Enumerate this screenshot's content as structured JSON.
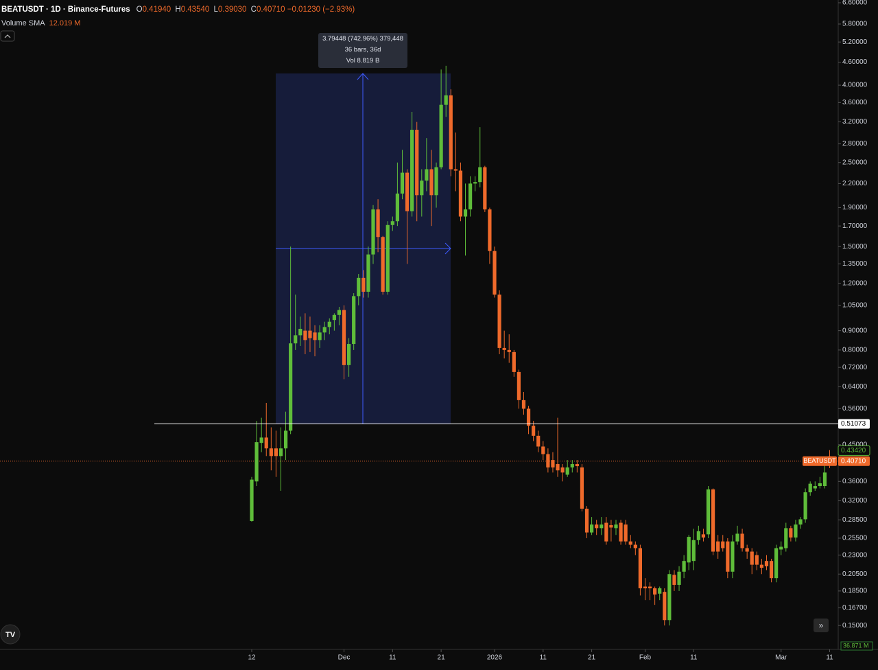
{
  "chart_data": {
    "type": "candlestick",
    "header": {
      "symbol": "BEATUSDT · 1D · Binance-Futures",
      "o_label": "O",
      "open": "0.41940",
      "h_label": "H",
      "high": "0.43540",
      "l_label": "L",
      "low": "0.39030",
      "c_label": "C",
      "close": "0.40710",
      "change": "−0.01230 (−2.93%)",
      "indicator": "Volume SMA",
      "indicator_value": "12.019 M"
    },
    "measure": [
      "3.79448 (742.96%) 379,448",
      "36 bars, 36d",
      "Vol 8.819 B"
    ],
    "log_scale": true,
    "up_color": "#5fbd3a",
    "down_color": "#ef6a2b",
    "ylim": [
      0.1297,
      6.712
    ],
    "yticks": [
      {
        "value": 6.6,
        "label": "6.60000"
      },
      {
        "value": 5.8,
        "label": "5.80000"
      },
      {
        "value": 5.2,
        "label": "5.20000"
      },
      {
        "value": 4.6,
        "label": "4.60000"
      },
      {
        "value": 4.0,
        "label": "4.00000"
      },
      {
        "value": 3.6,
        "label": "3.60000"
      },
      {
        "value": 3.2,
        "label": "3.20000"
      },
      {
        "value": 2.8,
        "label": "2.80000"
      },
      {
        "value": 2.5,
        "label": "2.50000"
      },
      {
        "value": 2.2,
        "label": "2.20000"
      },
      {
        "value": 1.9,
        "label": "1.90000"
      },
      {
        "value": 1.7,
        "label": "1.70000"
      },
      {
        "value": 1.5,
        "label": "1.50000"
      },
      {
        "value": 1.35,
        "label": "1.35000"
      },
      {
        "value": 1.2,
        "label": "1.20000"
      },
      {
        "value": 1.05,
        "label": "1.05000"
      },
      {
        "value": 0.9,
        "label": "0.90000"
      },
      {
        "value": 0.8,
        "label": "0.80000"
      },
      {
        "value": 0.72,
        "label": "0.72000"
      },
      {
        "value": 0.64,
        "label": "0.64000"
      },
      {
        "value": 0.56,
        "label": "0.56000"
      },
      {
        "value": 0.45,
        "label": "0.45000"
      },
      {
        "value": 0.36,
        "label": "0.36000"
      },
      {
        "value": 0.32,
        "label": "0.32000"
      },
      {
        "value": 0.285,
        "label": "0.28500"
      },
      {
        "value": 0.255,
        "label": "0.25500"
      },
      {
        "value": 0.23,
        "label": "0.23000"
      },
      {
        "value": 0.205,
        "label": "0.20500"
      },
      {
        "value": 0.185,
        "label": "0.18500"
      },
      {
        "value": 0.167,
        "label": "0.16700"
      },
      {
        "value": 0.15,
        "label": "0.15000"
      }
    ],
    "xticks": [
      {
        "value": 0,
        "label": "12"
      },
      {
        "value": 19,
        "label": "Dec"
      },
      {
        "value": 29,
        "label": "11"
      },
      {
        "value": 39,
        "label": "21"
      },
      {
        "value": 50,
        "label": "2026"
      },
      {
        "value": 60,
        "label": "11"
      },
      {
        "value": 70,
        "label": "21"
      },
      {
        "value": 81,
        "label": "Feb"
      },
      {
        "value": 91,
        "label": "11"
      },
      {
        "value": 109,
        "label": "Mar"
      },
      {
        "value": 119,
        "label": "11"
      }
    ],
    "hline": {
      "value": 0.51073,
      "label": "0.51073"
    },
    "price_tags": [
      {
        "value": 0.4342,
        "label": "0.43420"
      },
      {
        "value": 0.4071,
        "label": "0.40710",
        "name": "BEATUSDT"
      }
    ],
    "volume_tag": "36.871 M",
    "open": [
      0.283,
      0.36,
      0.455,
      0.47,
      0.44,
      0.44,
      0.42,
      0.44,
      0.49,
      0.833,
      0.875,
      0.9,
      0.9,
      0.89,
      0.85,
      0.89,
      0.92,
      0.96,
      0.99,
      1.02,
      0.73,
      0.83,
      1.11,
      1.24,
      1.14,
      1.43,
      1.88,
      1.59,
      1.14,
      1.71,
      1.75,
      2.07,
      2.35,
      1.86,
      3.05,
      2.05,
      2.24,
      2.4,
      2.05,
      2.43,
      3.55,
      3.76,
      2.4,
      2.38,
      1.8,
      1.88,
      2.2,
      2.22,
      2.43,
      1.88,
      1.46,
      1.12,
      0.81,
      0.8,
      0.79,
      0.7,
      0.59,
      0.56,
      0.505,
      0.475,
      0.445,
      0.425,
      0.41,
      0.4,
      0.392,
      0.375,
      0.392,
      0.4,
      0.392,
      0.305,
      0.264,
      0.277,
      0.271,
      0.28,
      0.276,
      0.271,
      0.28,
      0.277,
      0.25,
      0.245,
      0.24,
      0.19,
      0.19,
      0.188,
      0.182,
      0.184,
      0.155,
      0.204,
      0.192,
      0.208,
      0.22,
      0.222,
      0.252,
      0.261,
      0.261,
      0.343,
      0.25,
      0.25,
      0.25,
      0.208,
      0.25,
      0.262,
      0.24,
      0.235,
      0.23,
      0.217,
      0.222,
      0.222,
      0.2,
      0.238,
      0.24,
      0.271,
      0.256,
      0.277,
      0.286,
      0.337,
      0.345,
      0.35,
      0.35,
      0.4194
    ],
    "high": [
      0.37,
      0.52,
      0.53,
      0.58,
      0.5,
      0.49,
      0.5,
      0.55,
      1.5,
      1.12,
      0.98,
      1.0,
      0.98,
      0.93,
      0.93,
      0.95,
      0.97,
      1.0,
      1.04,
      1.05,
      0.86,
      1.13,
      1.27,
      1.3,
      1.5,
      1.93,
      2.0,
      1.6,
      1.75,
      1.8,
      2.5,
      2.7,
      2.4,
      3.4,
      3.2,
      2.4,
      2.9,
      2.7,
      2.5,
      4.4,
      4.5,
      3.9,
      3.0,
      2.5,
      2.2,
      2.3,
      2.3,
      3.1,
      2.45,
      1.9,
      1.5,
      1.15,
      0.9,
      0.88,
      0.8,
      0.71,
      0.62,
      0.57,
      0.52,
      0.49,
      0.46,
      0.44,
      0.43,
      0.53,
      0.4,
      0.41,
      0.41,
      0.41,
      0.4,
      0.31,
      0.29,
      0.285,
      0.29,
      0.29,
      0.285,
      0.285,
      0.285,
      0.285,
      0.26,
      0.25,
      0.245,
      0.2,
      0.195,
      0.19,
      0.19,
      0.188,
      0.21,
      0.21,
      0.215,
      0.23,
      0.26,
      0.27,
      0.275,
      0.27,
      0.35,
      0.345,
      0.26,
      0.26,
      0.255,
      0.26,
      0.275,
      0.27,
      0.245,
      0.24,
      0.235,
      0.225,
      0.23,
      0.225,
      0.245,
      0.25,
      0.28,
      0.275,
      0.285,
      0.29,
      0.345,
      0.36,
      0.36,
      0.37,
      0.405,
      0.4354
    ],
    "low": [
      0.282,
      0.35,
      0.43,
      0.42,
      0.385,
      0.37,
      0.34,
      0.41,
      0.48,
      0.8,
      0.82,
      0.78,
      0.79,
      0.77,
      0.81,
      0.85,
      0.88,
      0.9,
      0.93,
      0.67,
      0.68,
      0.8,
      1.05,
      1.1,
      1.1,
      1.35,
      1.45,
      1.12,
      1.12,
      1.65,
      1.7,
      2.0,
      1.35,
      1.8,
      1.75,
      1.8,
      2.1,
      1.7,
      1.9,
      2.4,
      3.3,
      2.3,
      2.1,
      1.75,
      1.42,
      1.8,
      2.1,
      2.15,
      1.85,
      1.35,
      1.1,
      0.78,
      0.76,
      0.74,
      0.68,
      0.56,
      0.54,
      0.48,
      0.46,
      0.43,
      0.41,
      0.38,
      0.38,
      0.37,
      0.36,
      0.37,
      0.38,
      0.38,
      0.3,
      0.255,
      0.26,
      0.26,
      0.26,
      0.245,
      0.25,
      0.26,
      0.245,
      0.245,
      0.24,
      0.23,
      0.18,
      0.175,
      0.175,
      0.17,
      0.175,
      0.15,
      0.15,
      0.185,
      0.185,
      0.2,
      0.21,
      0.21,
      0.245,
      0.25,
      0.255,
      0.23,
      0.225,
      0.235,
      0.2,
      0.2,
      0.245,
      0.235,
      0.225,
      0.205,
      0.21,
      0.205,
      0.21,
      0.195,
      0.195,
      0.23,
      0.235,
      0.25,
      0.25,
      0.27,
      0.28,
      0.33,
      0.34,
      0.345,
      0.345,
      0.3903
    ],
    "close": [
      0.364,
      0.457,
      0.47,
      0.44,
      0.42,
      0.42,
      0.44,
      0.49,
      0.833,
      0.875,
      0.91,
      0.85,
      0.86,
      0.85,
      0.89,
      0.92,
      0.95,
      0.99,
      1.02,
      0.73,
      0.83,
      1.11,
      1.24,
      1.14,
      1.43,
      1.88,
      1.59,
      1.14,
      1.71,
      1.75,
      2.07,
      2.35,
      1.86,
      3.05,
      2.05,
      2.24,
      2.4,
      2.05,
      2.43,
      3.55,
      3.76,
      2.4,
      2.38,
      1.8,
      1.88,
      2.2,
      2.22,
      2.43,
      1.88,
      1.46,
      1.12,
      0.81,
      0.8,
      0.79,
      0.7,
      0.59,
      0.56,
      0.505,
      0.475,
      0.445,
      0.425,
      0.392,
      0.392,
      0.385,
      0.38,
      0.392,
      0.4,
      0.395,
      0.305,
      0.264,
      0.277,
      0.271,
      0.277,
      0.25,
      0.272,
      0.277,
      0.25,
      0.25,
      0.245,
      0.24,
      0.188,
      0.188,
      0.188,
      0.181,
      0.188,
      0.155,
      0.205,
      0.192,
      0.208,
      0.222,
      0.257,
      0.252,
      0.266,
      0.256,
      0.343,
      0.235,
      0.235,
      0.24,
      0.208,
      0.25,
      0.262,
      0.24,
      0.235,
      0.217,
      0.217,
      0.213,
      0.215,
      0.2,
      0.24,
      0.242,
      0.271,
      0.256,
      0.277,
      0.286,
      0.337,
      0.355,
      0.35,
      0.356,
      0.38,
      0.4071
    ]
  }
}
